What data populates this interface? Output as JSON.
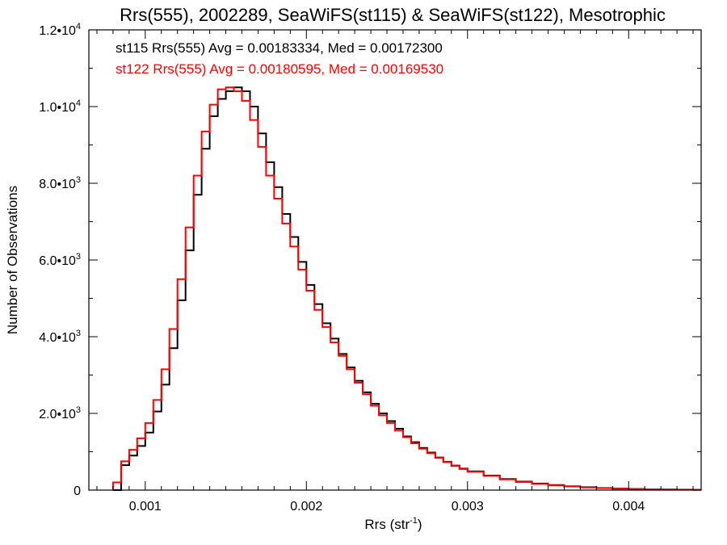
{
  "chart_data": {
    "type": "line",
    "title": "Rrs(555), 2002289, SeaWiFS(st115) & SeaWiFS(st122), Mesotrophic",
    "xlabel": "Rrs (str",
    "xlabel_sup": "-1",
    "xlabel_end": ")",
    "ylabel": "Number of Observations",
    "xlim": [
      0.00065,
      0.00445
    ],
    "ylim": [
      0,
      12000
    ],
    "grid": false,
    "x_ticks": [
      {
        "value": 0.001,
        "label": "0.001"
      },
      {
        "value": 0.002,
        "label": "0.002"
      },
      {
        "value": 0.003,
        "label": "0.003"
      },
      {
        "value": 0.004,
        "label": "0.004"
      }
    ],
    "y_ticks": [
      {
        "value": 0,
        "label": "0",
        "sup": ""
      },
      {
        "value": 2000,
        "label": "2.0•10",
        "sup": "3"
      },
      {
        "value": 4000,
        "label": "4.0•10",
        "sup": "3"
      },
      {
        "value": 6000,
        "label": "6.0•10",
        "sup": "3"
      },
      {
        "value": 8000,
        "label": "8.0•10",
        "sup": "3"
      },
      {
        "value": 10000,
        "label": "1.0•10",
        "sup": "4"
      },
      {
        "value": 12000,
        "label": "1.2•10",
        "sup": "4"
      }
    ],
    "annotations": [
      {
        "text": "st115 Rrs(555) Avg = 0.00183334, Med = 0.00172300",
        "color": "#000000"
      },
      {
        "text": "st122 Rrs(555) Avg = 0.00180595, Med = 0.00169530",
        "color": "#ff0000"
      }
    ],
    "series": [
      {
        "color": "#000000",
        "x": [
          0.0008,
          0.00085,
          0.0009,
          0.00095,
          0.001,
          0.00105,
          0.0011,
          0.00115,
          0.0012,
          0.00125,
          0.0013,
          0.00135,
          0.0014,
          0.00145,
          0.0015,
          0.00155,
          0.0016,
          0.00165,
          0.0017,
          0.00175,
          0.0018,
          0.00185,
          0.0019,
          0.00195,
          0.002,
          0.00205,
          0.0021,
          0.00215,
          0.0022,
          0.00225,
          0.0023,
          0.00235,
          0.0024,
          0.00245,
          0.0025,
          0.00255,
          0.0026,
          0.00265,
          0.0027,
          0.00275,
          0.0028,
          0.00285,
          0.0029,
          0.00295,
          0.003,
          0.0031,
          0.0032,
          0.0033,
          0.0034,
          0.0035,
          0.0036,
          0.0037,
          0.0038,
          0.0039,
          0.004,
          0.0041,
          0.0042,
          0.0043,
          0.0044
        ],
        "y": [
          0,
          650,
          900,
          1150,
          1500,
          2050,
          2750,
          3700,
          4950,
          6250,
          7700,
          8900,
          9750,
          10200,
          10400,
          10500,
          10400,
          10000,
          9300,
          8550,
          7900,
          7200,
          6600,
          5950,
          5350,
          4850,
          4350,
          3950,
          3550,
          3200,
          2850,
          2550,
          2250,
          2000,
          1800,
          1600,
          1400,
          1250,
          1100,
          980,
          850,
          740,
          640,
          560,
          490,
          380,
          290,
          220,
          170,
          130,
          100,
          75,
          55,
          40,
          30,
          22,
          16,
          12,
          8
        ]
      },
      {
        "color": "#ff0000",
        "x": [
          0.0008,
          0.00085,
          0.0009,
          0.00095,
          0.001,
          0.00105,
          0.0011,
          0.00115,
          0.0012,
          0.00125,
          0.0013,
          0.00135,
          0.0014,
          0.00145,
          0.0015,
          0.00155,
          0.0016,
          0.00165,
          0.0017,
          0.00175,
          0.0018,
          0.00185,
          0.0019,
          0.00195,
          0.002,
          0.00205,
          0.0021,
          0.00215,
          0.0022,
          0.00225,
          0.0023,
          0.00235,
          0.0024,
          0.00245,
          0.0025,
          0.00255,
          0.0026,
          0.00265,
          0.0027,
          0.00275,
          0.0028,
          0.00285,
          0.0029,
          0.00295,
          0.003,
          0.0031,
          0.0032,
          0.0033,
          0.0034,
          0.0035,
          0.0036,
          0.0037,
          0.0038,
          0.0039,
          0.004,
          0.0041,
          0.0042,
          0.0043,
          0.0044
        ],
        "y": [
          200,
          750,
          1050,
          1350,
          1750,
          2350,
          3150,
          4200,
          5500,
          6850,
          8200,
          9350,
          10050,
          10450,
          10500,
          10400,
          10150,
          9650,
          8950,
          8200,
          7600,
          6950,
          6350,
          5750,
          5200,
          4700,
          4250,
          3850,
          3500,
          3150,
          2800,
          2500,
          2200,
          1950,
          1750,
          1550,
          1380,
          1220,
          1080,
          960,
          840,
          730,
          630,
          550,
          480,
          370,
          280,
          210,
          160,
          120,
          95,
          70,
          52,
          38,
          28,
          20,
          15,
          11,
          8
        ]
      }
    ]
  }
}
